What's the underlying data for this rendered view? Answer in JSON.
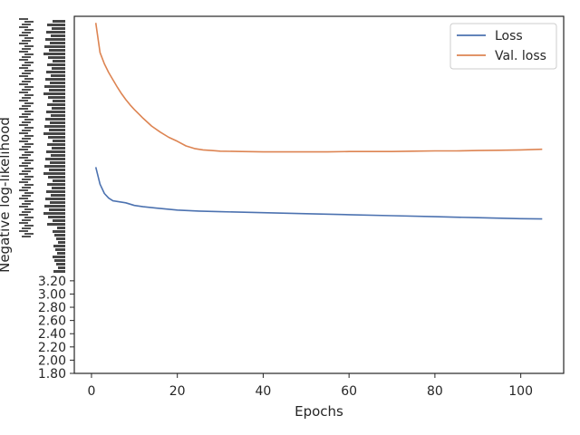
{
  "chart_data": {
    "type": "line",
    "title": "",
    "xlabel": "Epochs",
    "ylabel": "Negative log-likelihood",
    "xlim": [
      -4,
      110
    ],
    "ylim": [
      1.8,
      7.2
    ],
    "x_ticks": [
      0,
      20,
      40,
      60,
      80,
      100
    ],
    "y_ticks_legible": [
      1.8,
      2.0,
      2.2,
      2.4,
      2.6,
      2.8,
      3.0,
      3.2
    ],
    "y_tick_labels_legible": [
      "1.80",
      "2.00",
      "2.20",
      "2.40",
      "2.60",
      "2.80",
      "3.00",
      "3.20"
    ],
    "grid": false,
    "legend_position": "top-right",
    "series": [
      {
        "name": "Loss",
        "color": "#4c72b0",
        "x": [
          1,
          2,
          3,
          4,
          5,
          6,
          8,
          10,
          12,
          15,
          20,
          25,
          30,
          40,
          50,
          60,
          70,
          80,
          90,
          100,
          105
        ],
        "y": [
          4.92,
          4.66,
          4.52,
          4.45,
          4.41,
          4.4,
          4.38,
          4.34,
          4.32,
          4.3,
          4.27,
          4.255,
          4.245,
          4.23,
          4.215,
          4.2,
          4.185,
          4.17,
          4.155,
          4.14,
          4.135
        ]
      },
      {
        "name": "Val. loss",
        "color": "#dd8452",
        "x": [
          1,
          2,
          3,
          4,
          5,
          6,
          7,
          8,
          9,
          10,
          12,
          14,
          16,
          18,
          20,
          22,
          24,
          26,
          28,
          30,
          35,
          40,
          45,
          50,
          55,
          60,
          65,
          70,
          75,
          80,
          85,
          90,
          95,
          100,
          105
        ],
        "y": [
          7.1,
          6.65,
          6.48,
          6.35,
          6.24,
          6.13,
          6.03,
          5.94,
          5.86,
          5.79,
          5.66,
          5.54,
          5.45,
          5.37,
          5.31,
          5.24,
          5.2,
          5.18,
          5.17,
          5.16,
          5.155,
          5.15,
          5.15,
          5.15,
          5.15,
          5.155,
          5.155,
          5.155,
          5.16,
          5.165,
          5.165,
          5.17,
          5.175,
          5.18,
          5.19
        ]
      }
    ]
  }
}
